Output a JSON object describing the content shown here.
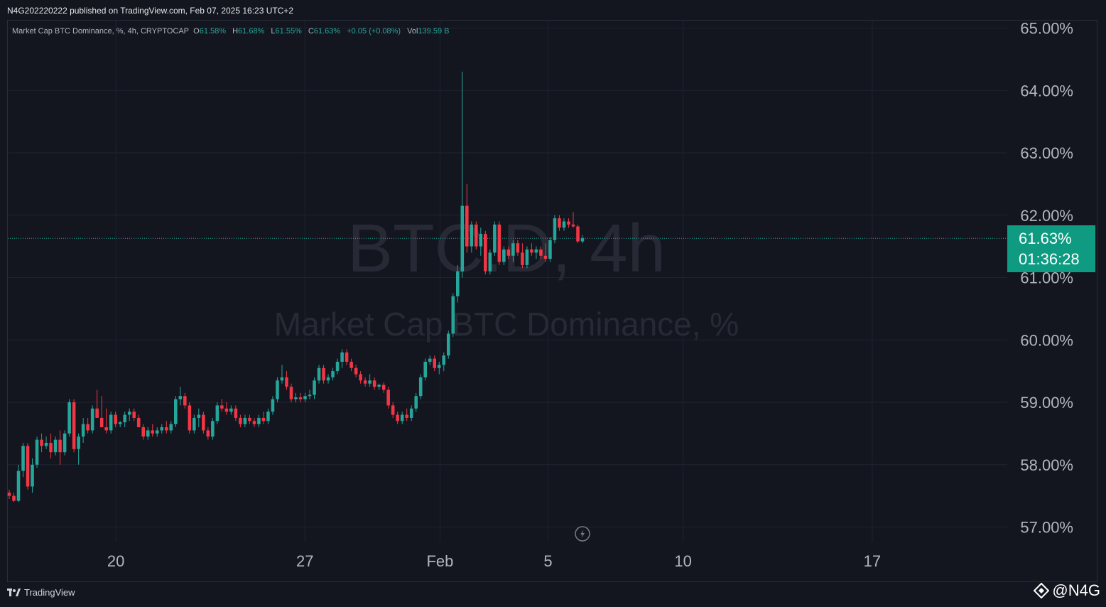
{
  "header": {
    "publish_line": "N4G202220222 published on TradingView.com, Feb 07, 2025 16:23 UTC+2"
  },
  "legend": {
    "title": "Market Cap BTC Dominance, %, 4h, CRYPTOCAP",
    "o_key": "O",
    "o_val": "61.58%",
    "h_key": "H",
    "h_val": "61.68%",
    "l_key": "L",
    "l_val": "61.55%",
    "c_key": "C",
    "c_val": "61.63%",
    "change": "+0.05 (+0.08%)",
    "vol_key": "Vol",
    "vol_val": "139.59 B"
  },
  "watermark": {
    "symbol": "BTC.D, 4h",
    "name": "Market Cap BTC Dominance, %"
  },
  "price_tag": {
    "price": "61.63%",
    "countdown": "01:36:28"
  },
  "footer": {
    "brand": "TradingView",
    "handle": "@N4G"
  },
  "colors": {
    "background": "#14161f",
    "up": "#26a69a",
    "down": "#f23645",
    "grid": "#1f2330",
    "price_line": "#26a69a"
  },
  "chart_data": {
    "type": "candlestick",
    "ylim": [
      56.6,
      65.2
    ],
    "yticks": [
      "57.00%",
      "58.00%",
      "59.00%",
      "60.00%",
      "61.00%",
      "62.00%",
      "63.00%",
      "64.00%",
      "65.00%"
    ],
    "ytick_values": [
      57,
      58,
      59,
      60,
      61,
      62,
      63,
      64,
      65
    ],
    "xticks": [
      "20",
      "27",
      "Feb",
      "5",
      "10",
      "17"
    ],
    "xtick_dates": [
      "2025-01-20",
      "2025-01-27",
      "2025-02-01",
      "2025-02-05",
      "2025-02-10",
      "2025-02-17"
    ],
    "x_range": [
      "2025-01-16",
      "2025-02-22"
    ],
    "last_price": 61.63,
    "candles": [
      {
        "o": 57.55,
        "h": 57.6,
        "l": 57.45,
        "c": 57.5
      },
      {
        "o": 57.5,
        "h": 57.55,
        "l": 57.4,
        "c": 57.42
      },
      {
        "o": 57.42,
        "h": 58.0,
        "l": 57.4,
        "c": 57.9
      },
      {
        "o": 57.9,
        "h": 58.35,
        "l": 57.8,
        "c": 58.3
      },
      {
        "o": 58.3,
        "h": 58.35,
        "l": 57.6,
        "c": 57.65
      },
      {
        "o": 57.65,
        "h": 58.1,
        "l": 57.55,
        "c": 58.0
      },
      {
        "o": 58.0,
        "h": 58.45,
        "l": 57.95,
        "c": 58.4
      },
      {
        "o": 58.4,
        "h": 58.5,
        "l": 58.2,
        "c": 58.3
      },
      {
        "o": 58.3,
        "h": 58.45,
        "l": 58.25,
        "c": 58.35
      },
      {
        "o": 58.35,
        "h": 58.5,
        "l": 58.1,
        "c": 58.2
      },
      {
        "o": 58.2,
        "h": 58.45,
        "l": 58.15,
        "c": 58.4
      },
      {
        "o": 58.4,
        "h": 58.55,
        "l": 58.0,
        "c": 58.2
      },
      {
        "o": 58.2,
        "h": 58.55,
        "l": 58.15,
        "c": 58.5
      },
      {
        "o": 58.5,
        "h": 59.05,
        "l": 58.45,
        "c": 59.0
      },
      {
        "o": 59.0,
        "h": 59.05,
        "l": 58.2,
        "c": 58.25
      },
      {
        "o": 58.25,
        "h": 58.5,
        "l": 58.0,
        "c": 58.45
      },
      {
        "o": 58.45,
        "h": 58.75,
        "l": 58.35,
        "c": 58.65
      },
      {
        "o": 58.65,
        "h": 58.75,
        "l": 58.5,
        "c": 58.55
      },
      {
        "o": 58.55,
        "h": 58.95,
        "l": 58.5,
        "c": 58.9
      },
      {
        "o": 58.9,
        "h": 59.2,
        "l": 58.8,
        "c": 58.75
      },
      {
        "o": 58.75,
        "h": 59.1,
        "l": 58.6,
        "c": 58.6
      },
      {
        "o": 58.6,
        "h": 58.9,
        "l": 58.5,
        "c": 58.55
      },
      {
        "o": 58.55,
        "h": 58.85,
        "l": 58.5,
        "c": 58.8
      },
      {
        "o": 58.8,
        "h": 58.85,
        "l": 58.6,
        "c": 58.65
      },
      {
        "o": 58.65,
        "h": 58.7,
        "l": 58.6,
        "c": 58.68
      },
      {
        "o": 58.68,
        "h": 58.85,
        "l": 58.6,
        "c": 58.8
      },
      {
        "o": 58.8,
        "h": 58.9,
        "l": 58.7,
        "c": 58.85
      },
      {
        "o": 58.85,
        "h": 58.9,
        "l": 58.7,
        "c": 58.75
      },
      {
        "o": 58.75,
        "h": 58.8,
        "l": 58.6,
        "c": 58.6
      },
      {
        "o": 58.6,
        "h": 58.65,
        "l": 58.4,
        "c": 58.45
      },
      {
        "o": 58.45,
        "h": 58.6,
        "l": 58.4,
        "c": 58.55
      },
      {
        "o": 58.55,
        "h": 58.65,
        "l": 58.45,
        "c": 58.5
      },
      {
        "o": 58.5,
        "h": 58.6,
        "l": 58.45,
        "c": 58.55
      },
      {
        "o": 58.55,
        "h": 58.65,
        "l": 58.5,
        "c": 58.6
      },
      {
        "o": 58.6,
        "h": 58.7,
        "l": 58.5,
        "c": 58.55
      },
      {
        "o": 58.55,
        "h": 58.7,
        "l": 58.5,
        "c": 58.65
      },
      {
        "o": 58.65,
        "h": 59.1,
        "l": 58.6,
        "c": 59.05
      },
      {
        "o": 59.05,
        "h": 59.25,
        "l": 58.95,
        "c": 59.1
      },
      {
        "o": 59.1,
        "h": 59.15,
        "l": 58.9,
        "c": 58.95
      },
      {
        "o": 58.95,
        "h": 59.0,
        "l": 58.5,
        "c": 58.55
      },
      {
        "o": 58.55,
        "h": 58.8,
        "l": 58.5,
        "c": 58.75
      },
      {
        "o": 58.75,
        "h": 58.9,
        "l": 58.6,
        "c": 58.8
      },
      {
        "o": 58.8,
        "h": 58.85,
        "l": 58.5,
        "c": 58.55
      },
      {
        "o": 58.55,
        "h": 58.6,
        "l": 58.4,
        "c": 58.45
      },
      {
        "o": 58.45,
        "h": 58.75,
        "l": 58.4,
        "c": 58.7
      },
      {
        "o": 58.7,
        "h": 59.0,
        "l": 58.65,
        "c": 58.95
      },
      {
        "o": 58.95,
        "h": 59.05,
        "l": 58.85,
        "c": 58.9
      },
      {
        "o": 58.9,
        "h": 59.0,
        "l": 58.8,
        "c": 58.85
      },
      {
        "o": 58.85,
        "h": 58.95,
        "l": 58.8,
        "c": 58.9
      },
      {
        "o": 58.9,
        "h": 58.95,
        "l": 58.7,
        "c": 58.75
      },
      {
        "o": 58.75,
        "h": 58.8,
        "l": 58.6,
        "c": 58.65
      },
      {
        "o": 58.65,
        "h": 58.8,
        "l": 58.6,
        "c": 58.75
      },
      {
        "o": 58.75,
        "h": 58.8,
        "l": 58.65,
        "c": 58.7
      },
      {
        "o": 58.7,
        "h": 58.75,
        "l": 58.6,
        "c": 58.65
      },
      {
        "o": 58.65,
        "h": 58.8,
        "l": 58.6,
        "c": 58.75
      },
      {
        "o": 58.75,
        "h": 58.85,
        "l": 58.65,
        "c": 58.7
      },
      {
        "o": 58.7,
        "h": 58.9,
        "l": 58.65,
        "c": 58.85
      },
      {
        "o": 58.85,
        "h": 59.1,
        "l": 58.8,
        "c": 59.05
      },
      {
        "o": 59.05,
        "h": 59.4,
        "l": 59.0,
        "c": 59.35
      },
      {
        "o": 59.35,
        "h": 59.6,
        "l": 59.3,
        "c": 59.4
      },
      {
        "o": 59.4,
        "h": 59.5,
        "l": 59.2,
        "c": 59.25
      },
      {
        "o": 59.25,
        "h": 59.3,
        "l": 59.0,
        "c": 59.05
      },
      {
        "o": 59.05,
        "h": 59.15,
        "l": 59.0,
        "c": 59.08
      },
      {
        "o": 59.08,
        "h": 59.15,
        "l": 59.0,
        "c": 59.05
      },
      {
        "o": 59.05,
        "h": 59.15,
        "l": 59.0,
        "c": 59.1
      },
      {
        "o": 59.1,
        "h": 59.2,
        "l": 59.05,
        "c": 59.12
      },
      {
        "o": 59.12,
        "h": 59.4,
        "l": 59.05,
        "c": 59.35
      },
      {
        "o": 59.35,
        "h": 59.6,
        "l": 59.3,
        "c": 59.55
      },
      {
        "o": 59.55,
        "h": 59.6,
        "l": 59.3,
        "c": 59.35
      },
      {
        "o": 59.35,
        "h": 59.45,
        "l": 59.3,
        "c": 59.4
      },
      {
        "o": 59.4,
        "h": 59.55,
        "l": 59.35,
        "c": 59.5
      },
      {
        "o": 59.5,
        "h": 59.7,
        "l": 59.45,
        "c": 59.65
      },
      {
        "o": 59.65,
        "h": 59.85,
        "l": 59.55,
        "c": 59.8
      },
      {
        "o": 59.8,
        "h": 59.85,
        "l": 59.6,
        "c": 59.65
      },
      {
        "o": 59.65,
        "h": 59.7,
        "l": 59.5,
        "c": 59.55
      },
      {
        "o": 59.55,
        "h": 59.6,
        "l": 59.4,
        "c": 59.45
      },
      {
        "o": 59.45,
        "h": 59.5,
        "l": 59.3,
        "c": 59.35
      },
      {
        "o": 59.35,
        "h": 59.4,
        "l": 59.25,
        "c": 59.3
      },
      {
        "o": 59.3,
        "h": 59.45,
        "l": 59.25,
        "c": 59.35
      },
      {
        "o": 59.35,
        "h": 59.4,
        "l": 59.2,
        "c": 59.25
      },
      {
        "o": 59.25,
        "h": 59.3,
        "l": 59.2,
        "c": 59.28
      },
      {
        "o": 59.28,
        "h": 59.32,
        "l": 59.15,
        "c": 59.2
      },
      {
        "o": 59.2,
        "h": 59.25,
        "l": 58.9,
        "c": 58.95
      },
      {
        "o": 58.95,
        "h": 59.0,
        "l": 58.75,
        "c": 58.8
      },
      {
        "o": 58.8,
        "h": 58.85,
        "l": 58.65,
        "c": 58.7
      },
      {
        "o": 58.7,
        "h": 58.85,
        "l": 58.65,
        "c": 58.8
      },
      {
        "o": 58.8,
        "h": 58.9,
        "l": 58.7,
        "c": 58.75
      },
      {
        "o": 58.75,
        "h": 58.95,
        "l": 58.7,
        "c": 58.9
      },
      {
        "o": 58.9,
        "h": 59.15,
        "l": 58.85,
        "c": 59.1
      },
      {
        "o": 59.1,
        "h": 59.45,
        "l": 59.05,
        "c": 59.4
      },
      {
        "o": 59.4,
        "h": 59.7,
        "l": 59.35,
        "c": 59.65
      },
      {
        "o": 59.65,
        "h": 59.75,
        "l": 59.6,
        "c": 59.7
      },
      {
        "o": 59.7,
        "h": 59.75,
        "l": 59.5,
        "c": 59.55
      },
      {
        "o": 59.55,
        "h": 59.65,
        "l": 59.45,
        "c": 59.6
      },
      {
        "o": 59.6,
        "h": 59.8,
        "l": 59.5,
        "c": 59.75
      },
      {
        "o": 59.75,
        "h": 60.15,
        "l": 59.7,
        "c": 60.1
      },
      {
        "o": 60.1,
        "h": 60.75,
        "l": 60.05,
        "c": 60.7
      },
      {
        "o": 60.7,
        "h": 61.2,
        "l": 60.6,
        "c": 61.1
      },
      {
        "o": 61.1,
        "h": 64.3,
        "l": 61.0,
        "c": 62.15
      },
      {
        "o": 62.15,
        "h": 62.5,
        "l": 61.4,
        "c": 61.5
      },
      {
        "o": 61.5,
        "h": 61.9,
        "l": 61.4,
        "c": 61.85
      },
      {
        "o": 61.85,
        "h": 61.9,
        "l": 61.45,
        "c": 61.5
      },
      {
        "o": 61.5,
        "h": 61.8,
        "l": 61.35,
        "c": 61.7
      },
      {
        "o": 61.7,
        "h": 61.75,
        "l": 61.05,
        "c": 61.1
      },
      {
        "o": 61.1,
        "h": 61.45,
        "l": 61.05,
        "c": 61.4
      },
      {
        "o": 61.4,
        "h": 61.9,
        "l": 61.35,
        "c": 61.85
      },
      {
        "o": 61.85,
        "h": 61.9,
        "l": 61.2,
        "c": 61.25
      },
      {
        "o": 61.25,
        "h": 61.5,
        "l": 61.2,
        "c": 61.45
      },
      {
        "o": 61.45,
        "h": 61.5,
        "l": 61.3,
        "c": 61.35
      },
      {
        "o": 61.35,
        "h": 61.6,
        "l": 61.25,
        "c": 61.55
      },
      {
        "o": 61.55,
        "h": 61.6,
        "l": 61.35,
        "c": 61.4
      },
      {
        "o": 61.4,
        "h": 61.55,
        "l": 61.15,
        "c": 61.2
      },
      {
        "o": 61.2,
        "h": 61.5,
        "l": 61.15,
        "c": 61.45
      },
      {
        "o": 61.45,
        "h": 61.55,
        "l": 61.35,
        "c": 61.4
      },
      {
        "o": 61.4,
        "h": 61.5,
        "l": 61.3,
        "c": 61.45
      },
      {
        "o": 61.45,
        "h": 61.5,
        "l": 61.3,
        "c": 61.35
      },
      {
        "o": 61.35,
        "h": 61.55,
        "l": 61.25,
        "c": 61.3
      },
      {
        "o": 61.3,
        "h": 61.65,
        "l": 61.25,
        "c": 61.6
      },
      {
        "o": 61.6,
        "h": 62.0,
        "l": 61.55,
        "c": 61.95
      },
      {
        "o": 61.95,
        "h": 62.0,
        "l": 61.75,
        "c": 61.8
      },
      {
        "o": 61.8,
        "h": 61.95,
        "l": 61.75,
        "c": 61.9
      },
      {
        "o": 61.9,
        "h": 61.95,
        "l": 61.8,
        "c": 61.85
      },
      {
        "o": 61.85,
        "h": 62.05,
        "l": 61.8,
        "c": 61.82
      },
      {
        "o": 61.82,
        "h": 61.85,
        "l": 61.55,
        "c": 61.58
      },
      {
        "o": 61.58,
        "h": 61.68,
        "l": 61.55,
        "c": 61.63
      }
    ]
  }
}
